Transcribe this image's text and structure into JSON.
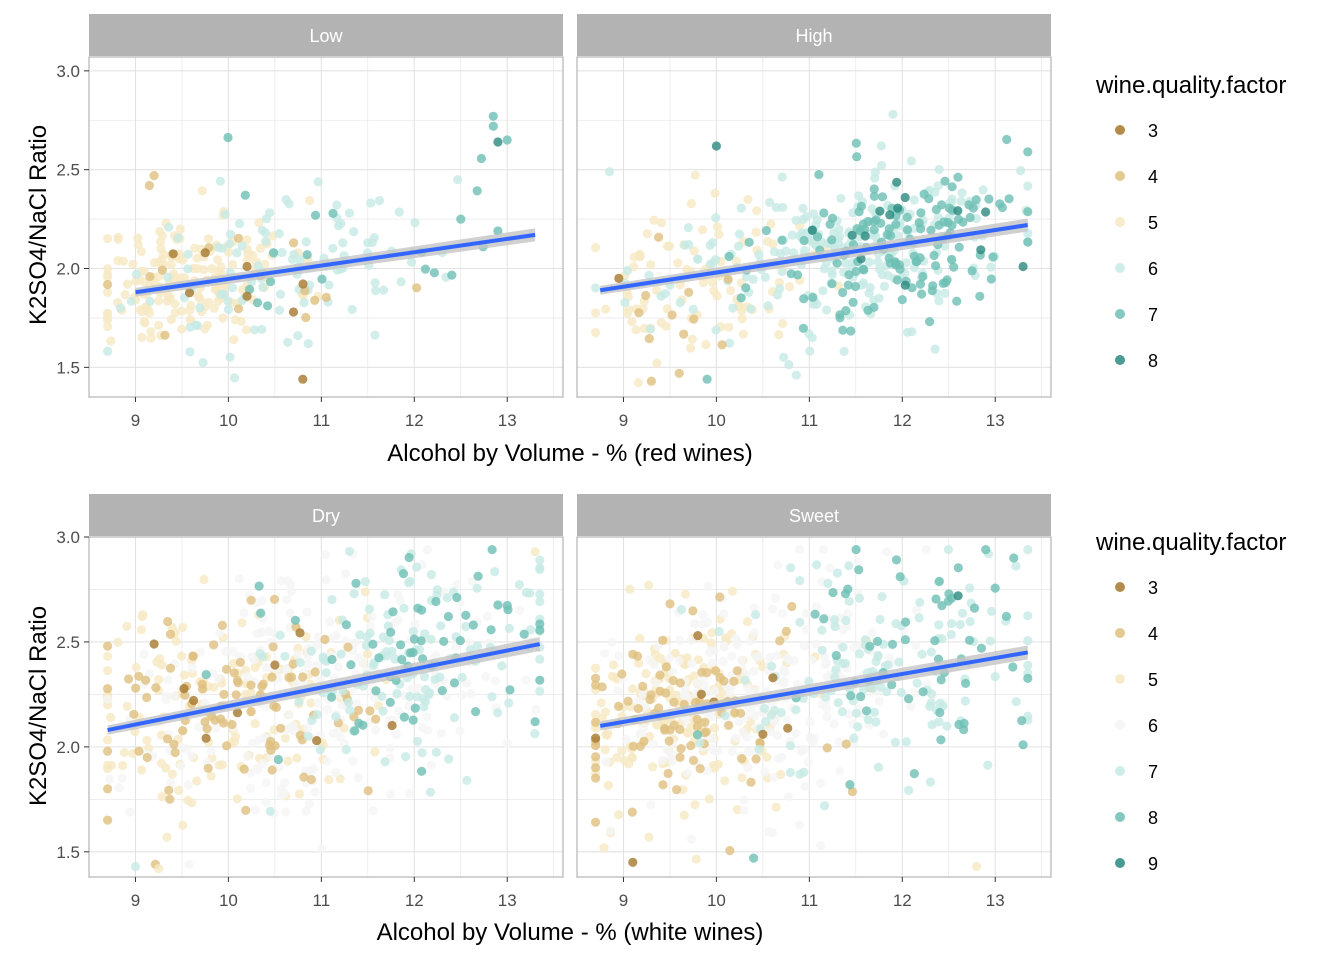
{
  "colors": {
    "strip_bg": "#b3b3b3",
    "panel_border": "#b3b3b3",
    "grid": "#e3e3e3",
    "fit_line": "#3366ff",
    "ribbon": "#c4c4c4"
  },
  "legend_title": "wine.quality.factor",
  "chart_data": [
    {
      "type": "scatter",
      "id": "red",
      "xlabel": "Alcohol by Volume - % (red wines)",
      "ylabel": "K2SO4/NaCl Ratio",
      "xlim": [
        8.5,
        13.6
      ],
      "ylim": [
        1.35,
        3.07
      ],
      "xticks": [
        9,
        10,
        11,
        12,
        13
      ],
      "yticks": [
        1.5,
        2.0,
        2.5,
        3.0
      ],
      "ytick_labels": [
        "1.5",
        "2.0",
        "2.5",
        "3.0"
      ],
      "grid": true,
      "legend_position": "right",
      "levels": [
        {
          "label": "3",
          "color": "#a6782e"
        },
        {
          "label": "4",
          "color": "#dfbf7e"
        },
        {
          "label": "5",
          "color": "#f6e8c3"
        },
        {
          "label": "6",
          "color": "#c7eae5"
        },
        {
          "label": "7",
          "color": "#6dbfb4"
        },
        {
          "label": "8",
          "color": "#2a8a80"
        }
      ],
      "panels": [
        {
          "name": "Low",
          "fit": {
            "x": [
              9.0,
              13.3
            ],
            "y": [
              1.88,
              2.17
            ]
          },
          "seed": 11,
          "clusters": [
            {
              "level": 2,
              "n": 190,
              "xm": 9.6,
              "xs": 0.55,
              "ym": 1.95,
              "ys": 0.16
            },
            {
              "level": 3,
              "n": 110,
              "xm": 10.6,
              "xs": 0.8,
              "ym": 2.02,
              "ys": 0.18
            },
            {
              "level": 4,
              "n": 18,
              "xm": 11.6,
              "xs": 0.9,
              "ym": 2.12,
              "ys": 0.22
            },
            {
              "level": 1,
              "n": 14,
              "xm": 9.8,
              "xs": 0.8,
              "ym": 1.92,
              "ys": 0.2
            },
            {
              "level": 0,
              "n": 3,
              "xm": 10.0,
              "xs": 0.8,
              "ym": 1.9,
              "ys": 0.2
            }
          ],
          "points": [
            {
              "x": 12.85,
              "y": 2.77,
              "l": 4
            },
            {
              "x": 12.85,
              "y": 2.72,
              "l": 4
            },
            {
              "x": 12.9,
              "y": 2.64,
              "l": 5
            },
            {
              "x": 13.0,
              "y": 2.65,
              "l": 4
            },
            {
              "x": 10.8,
              "y": 1.44,
              "l": 0
            },
            {
              "x": 9.15,
              "y": 2.42,
              "l": 1
            },
            {
              "x": 9.2,
              "y": 2.47,
              "l": 1
            },
            {
              "x": 9.75,
              "y": 2.08,
              "l": 0
            },
            {
              "x": 10.2,
              "y": 2.01,
              "l": 0
            },
            {
              "x": 10.7,
              "y": 1.78,
              "l": 0
            },
            {
              "x": 10.2,
              "y": 1.86,
              "l": 0
            },
            {
              "x": 12.5,
              "y": 2.25,
              "l": 4
            },
            {
              "x": 12.9,
              "y": 2.19,
              "l": 4
            }
          ]
        },
        {
          "name": "High",
          "fit": {
            "x": [
              8.75,
              13.35
            ],
            "y": [
              1.89,
              2.22
            ]
          },
          "seed": 23,
          "clusters": [
            {
              "level": 2,
              "n": 95,
              "xm": 9.8,
              "xs": 0.6,
              "ym": 1.92,
              "ys": 0.18
            },
            {
              "level": 3,
              "n": 230,
              "xm": 11.3,
              "xs": 0.9,
              "ym": 2.08,
              "ys": 0.2
            },
            {
              "level": 4,
              "n": 140,
              "xm": 11.8,
              "xs": 0.75,
              "ym": 2.1,
              "ys": 0.2
            },
            {
              "level": 5,
              "n": 14,
              "xm": 11.9,
              "xs": 0.7,
              "ym": 2.15,
              "ys": 0.18
            },
            {
              "level": 1,
              "n": 10,
              "xm": 9.8,
              "xs": 0.6,
              "ym": 1.9,
              "ys": 0.2
            }
          ],
          "points": [
            {
              "x": 9.3,
              "y": 1.43,
              "l": 1
            },
            {
              "x": 9.6,
              "y": 1.47,
              "l": 1
            },
            {
              "x": 10.0,
              "y": 2.62,
              "l": 5
            },
            {
              "x": 9.9,
              "y": 1.44,
              "l": 4
            },
            {
              "x": 11.9,
              "y": 2.78,
              "l": 3
            },
            {
              "x": 13.3,
              "y": 2.01,
              "l": 5
            },
            {
              "x": 13.35,
              "y": 2.59,
              "l": 4
            },
            {
              "x": 8.95,
              "y": 1.95,
              "l": 0
            },
            {
              "x": 8.85,
              "y": 2.49,
              "l": 3
            }
          ]
        }
      ]
    },
    {
      "type": "scatter",
      "id": "white",
      "xlabel": "Alcohol by Volume - % (white wines)",
      "ylabel": "K2SO4/NaCl Ratio",
      "xlim": [
        8.5,
        13.6
      ],
      "ylim": [
        1.38,
        3.0
      ],
      "xticks": [
        9,
        10,
        11,
        12,
        13
      ],
      "yticks": [
        1.5,
        2.0,
        2.5,
        3.0
      ],
      "ytick_labels": [
        "1.5",
        "2.0",
        "2.5",
        "3.0"
      ],
      "grid": true,
      "legend_position": "right",
      "levels": [
        {
          "label": "3",
          "color": "#a6782e"
        },
        {
          "label": "4",
          "color": "#dfbf7e"
        },
        {
          "label": "5",
          "color": "#f6e8c3"
        },
        {
          "label": "6",
          "color": "#f5f5f5"
        },
        {
          "label": "7",
          "color": "#c7eae5"
        },
        {
          "label": "8",
          "color": "#6dbfb4"
        },
        {
          "label": "9",
          "color": "#2a8a80"
        }
      ],
      "panels": [
        {
          "name": "Dry",
          "fit": {
            "x": [
              8.7,
              13.35
            ],
            "y": [
              2.08,
              2.49
            ]
          },
          "seed": 37,
          "clusters": [
            {
              "level": 2,
              "n": 150,
              "xm": 9.9,
              "xs": 0.75,
              "ym": 2.2,
              "ys": 0.25
            },
            {
              "level": 1,
              "n": 90,
              "xm": 10.1,
              "xs": 0.8,
              "ym": 2.22,
              "ys": 0.25
            },
            {
              "level": 3,
              "n": 260,
              "xm": 11.0,
              "xs": 1.0,
              "ym": 2.3,
              "ys": 0.28
            },
            {
              "level": 4,
              "n": 130,
              "xm": 12.0,
              "xs": 0.8,
              "ym": 2.4,
              "ys": 0.25
            },
            {
              "level": 5,
              "n": 60,
              "xm": 12.2,
              "xs": 0.75,
              "ym": 2.45,
              "ys": 0.25
            },
            {
              "level": 0,
              "n": 6,
              "xm": 10.3,
              "xs": 0.9,
              "ym": 2.2,
              "ys": 0.2
            }
          ],
          "points": [
            {
              "x": 9.2,
              "y": 2.49,
              "l": 0
            },
            {
              "x": 10.5,
              "y": 2.39,
              "l": 0
            },
            {
              "x": 10.95,
              "y": 2.03,
              "l": 0
            },
            {
              "x": 8.7,
              "y": 1.8,
              "l": 1
            },
            {
              "x": 9.0,
              "y": 1.43,
              "l": 4
            },
            {
              "x": 9.25,
              "y": 1.42,
              "l": 2
            },
            {
              "x": 13.3,
              "y": 2.12,
              "l": 5
            },
            {
              "x": 13.3,
              "y": 2.93,
              "l": 2
            }
          ]
        },
        {
          "name": "Sweet",
          "fit": {
            "x": [
              8.75,
              13.35
            ],
            "y": [
              2.1,
              2.45
            ]
          },
          "seed": 53,
          "clusters": [
            {
              "level": 2,
              "n": 190,
              "xm": 9.7,
              "xs": 0.7,
              "ym": 2.17,
              "ys": 0.25
            },
            {
              "level": 1,
              "n": 90,
              "xm": 9.7,
              "xs": 0.7,
              "ym": 2.15,
              "ys": 0.27
            },
            {
              "level": 3,
              "n": 260,
              "xm": 10.6,
              "xs": 0.9,
              "ym": 2.25,
              "ys": 0.25
            },
            {
              "level": 4,
              "n": 140,
              "xm": 11.8,
              "xs": 0.9,
              "ym": 2.4,
              "ys": 0.27
            },
            {
              "level": 5,
              "n": 55,
              "xm": 12.1,
              "xs": 0.7,
              "ym": 2.45,
              "ys": 0.3
            },
            {
              "level": 0,
              "n": 5,
              "xm": 10.0,
              "xs": 0.8,
              "ym": 2.15,
              "ys": 0.2
            }
          ],
          "points": [
            {
              "x": 9.1,
              "y": 1.45,
              "l": 0
            },
            {
              "x": 9.8,
              "y": 2.53,
              "l": 0
            },
            {
              "x": 10.5,
              "y": 2.06,
              "l": 0
            },
            {
              "x": 12.6,
              "y": 2.72,
              "l": 6
            },
            {
              "x": 13.3,
              "y": 2.01,
              "l": 5
            },
            {
              "x": 13.2,
              "y": 2.9,
              "l": 5
            },
            {
              "x": 10.4,
              "y": 1.47,
              "l": 5
            },
            {
              "x": 12.8,
              "y": 1.43,
              "l": 2
            }
          ]
        }
      ]
    }
  ]
}
